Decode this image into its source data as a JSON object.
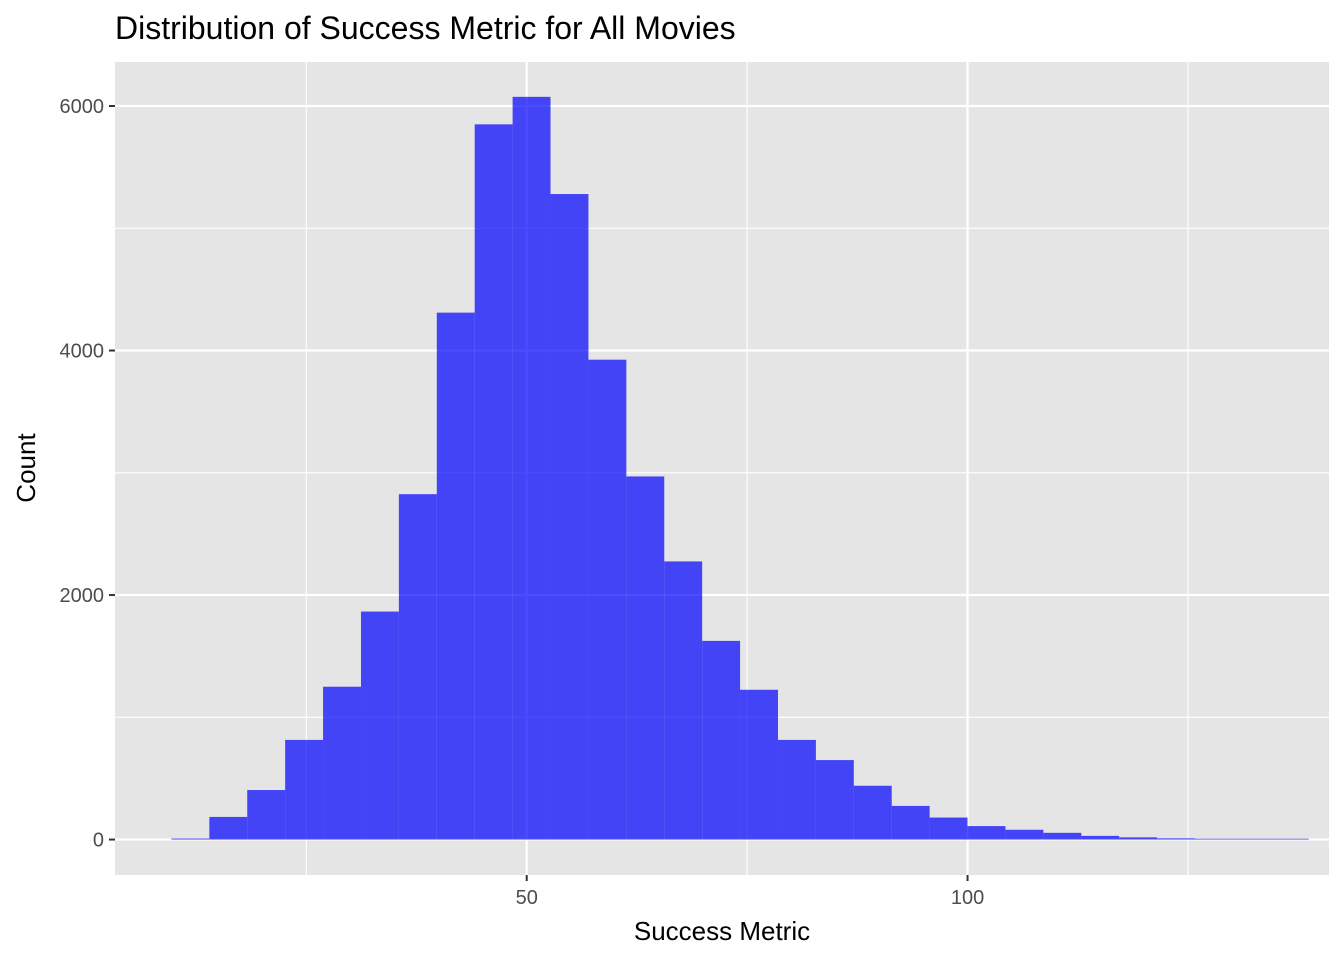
{
  "chart_data": {
    "type": "bar",
    "title": "Distribution of Success Metric for All Movies",
    "xlabel": "Success Metric",
    "ylabel": "Count",
    "xlim": [
      3.3,
      141.0
    ],
    "ylim": [
      -290,
      6360
    ],
    "x_ticks": [
      50,
      100
    ],
    "y_ticks": [
      0,
      2000,
      4000,
      6000
    ],
    "x_minor_ticks": [
      25,
      75,
      125
    ],
    "y_minor_ticks": [
      1000,
      3000,
      5000
    ],
    "grid": true,
    "bar_color": "#0000ff",
    "bar_opacity": 0.7,
    "panel_background": "#e5e5e5",
    "grid_color": "#ffffff",
    "bins": [
      {
        "x0": 9.7,
        "x1": 14.0,
        "count": 8
      },
      {
        "x0": 14.0,
        "x1": 18.3,
        "count": 185
      },
      {
        "x0": 18.3,
        "x1": 22.6,
        "count": 405
      },
      {
        "x0": 22.6,
        "x1": 26.9,
        "count": 815
      },
      {
        "x0": 26.9,
        "x1": 31.2,
        "count": 1250
      },
      {
        "x0": 31.2,
        "x1": 35.5,
        "count": 1865
      },
      {
        "x0": 35.5,
        "x1": 39.8,
        "count": 2825
      },
      {
        "x0": 39.8,
        "x1": 44.1,
        "count": 4310
      },
      {
        "x0": 44.1,
        "x1": 48.4,
        "count": 5850
      },
      {
        "x0": 48.4,
        "x1": 52.7,
        "count": 6075
      },
      {
        "x0": 52.7,
        "x1": 57.0,
        "count": 5280
      },
      {
        "x0": 57.0,
        "x1": 61.3,
        "count": 3925
      },
      {
        "x0": 61.3,
        "x1": 65.6,
        "count": 2970
      },
      {
        "x0": 65.6,
        "x1": 69.9,
        "count": 2275
      },
      {
        "x0": 69.9,
        "x1": 74.2,
        "count": 1625
      },
      {
        "x0": 74.2,
        "x1": 78.5,
        "count": 1225
      },
      {
        "x0": 78.5,
        "x1": 82.8,
        "count": 815
      },
      {
        "x0": 82.8,
        "x1": 87.1,
        "count": 650
      },
      {
        "x0": 87.1,
        "x1": 91.4,
        "count": 440
      },
      {
        "x0": 91.4,
        "x1": 95.7,
        "count": 275
      },
      {
        "x0": 95.7,
        "x1": 100.0,
        "count": 180
      },
      {
        "x0": 100.0,
        "x1": 104.3,
        "count": 110
      },
      {
        "x0": 104.3,
        "x1": 108.6,
        "count": 80
      },
      {
        "x0": 108.6,
        "x1": 112.9,
        "count": 55
      },
      {
        "x0": 112.9,
        "x1": 117.2,
        "count": 30
      },
      {
        "x0": 117.2,
        "x1": 121.5,
        "count": 18
      },
      {
        "x0": 121.5,
        "x1": 125.8,
        "count": 10
      },
      {
        "x0": 125.8,
        "x1": 130.1,
        "count": 6
      },
      {
        "x0": 130.1,
        "x1": 134.4,
        "count": 3
      },
      {
        "x0": 134.4,
        "x1": 138.7,
        "count": 2
      }
    ]
  }
}
